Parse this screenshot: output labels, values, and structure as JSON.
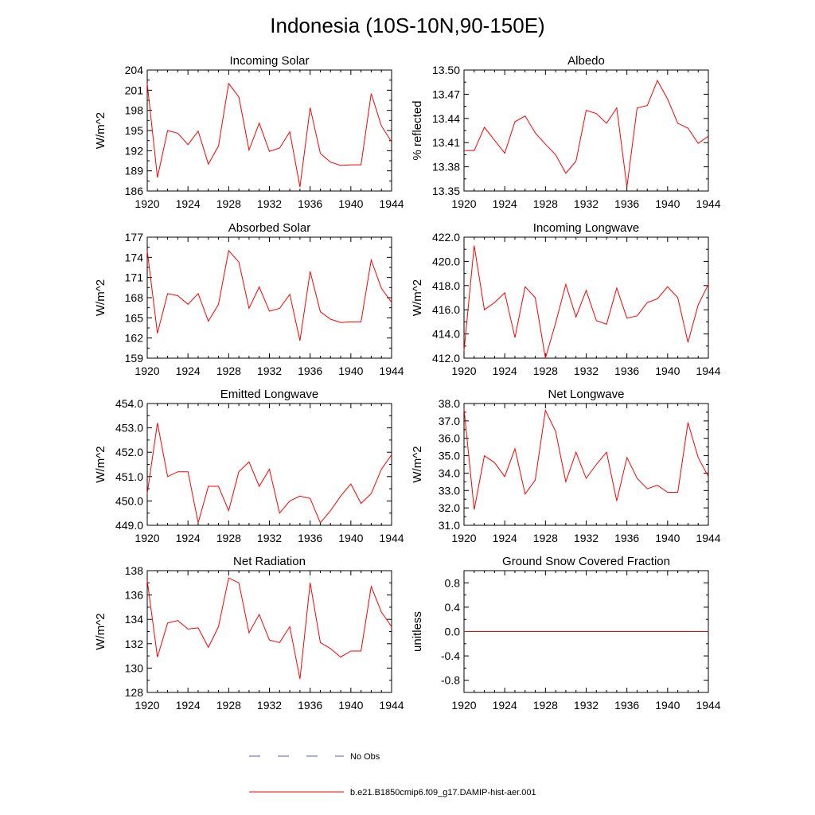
{
  "figure": {
    "title": "Indonesia (10S-10N,90-150E)"
  },
  "legend": {
    "obs_label": "No Obs",
    "model_label": "b.e21.B1850cmip6.f09_g17.DAMIP-hist-aer.001",
    "obs_color": "#5a5ad8",
    "model_color": "#ff0000"
  },
  "chart_data": [
    {
      "type": "line",
      "title": "Incoming Solar",
      "ylabel": "W/m^2",
      "xlim": [
        1920,
        1944
      ],
      "ylim": [
        186,
        204
      ],
      "yticks": [
        186,
        189,
        192,
        195,
        198,
        201,
        204
      ],
      "ytick_labels": [
        "186",
        "189",
        "192",
        "195",
        "198",
        "201",
        "204"
      ],
      "xticks": [
        1920,
        1924,
        1928,
        1932,
        1936,
        1940,
        1944
      ],
      "x": [
        1920,
        1921,
        1922,
        1923,
        1924,
        1925,
        1926,
        1927,
        1928,
        1929,
        1930,
        1931,
        1932,
        1933,
        1934,
        1935,
        1936,
        1937,
        1938,
        1939,
        1940,
        1941,
        1942,
        1943,
        1944
      ],
      "values": [
        202,
        188,
        195,
        194.6,
        192.9,
        194.9,
        190,
        192.7,
        202,
        200,
        192.1,
        196.1,
        191.9,
        192.4,
        194.8,
        186.6,
        198.4,
        191.6,
        190.3,
        189.8,
        189.9,
        189.9,
        200.5,
        195.7,
        193.3
      ]
    },
    {
      "type": "line",
      "title": "Albedo",
      "ylabel": "% reflected",
      "xlim": [
        1920,
        1944
      ],
      "ylim": [
        13.35,
        13.5
      ],
      "yticks": [
        13.35,
        13.38,
        13.41,
        13.44,
        13.47,
        13.5
      ],
      "ytick_labels": [
        "13.35",
        "13.38",
        "13.41",
        "13.44",
        "13.47",
        "13.50"
      ],
      "xticks": [
        1920,
        1924,
        1928,
        1932,
        1936,
        1940,
        1944
      ],
      "x": [
        1920,
        1921,
        1922,
        1923,
        1924,
        1925,
        1926,
        1927,
        1928,
        1929,
        1930,
        1931,
        1932,
        1933,
        1934,
        1935,
        1936,
        1937,
        1938,
        1939,
        1940,
        1941,
        1942,
        1943,
        1944
      ],
      "values": [
        13.4,
        13.4,
        13.429,
        13.413,
        13.397,
        13.436,
        13.443,
        13.422,
        13.408,
        13.395,
        13.372,
        13.387,
        13.45,
        13.446,
        13.434,
        13.453,
        13.355,
        13.453,
        13.456,
        13.487,
        13.464,
        13.434,
        13.428,
        13.409,
        13.418
      ]
    },
    {
      "type": "line",
      "title": "Absorbed Solar",
      "ylabel": "W/m^2",
      "xlim": [
        1920,
        1944
      ],
      "ylim": [
        159,
        177
      ],
      "yticks": [
        159,
        162,
        165,
        168,
        171,
        174,
        177
      ],
      "ytick_labels": [
        "159",
        "162",
        "165",
        "168",
        "171",
        "174",
        "177"
      ],
      "xticks": [
        1920,
        1924,
        1928,
        1932,
        1936,
        1940,
        1944
      ],
      "x": [
        1920,
        1921,
        1922,
        1923,
        1924,
        1925,
        1926,
        1927,
        1928,
        1929,
        1930,
        1931,
        1932,
        1933,
        1934,
        1935,
        1936,
        1937,
        1938,
        1939,
        1940,
        1941,
        1942,
        1943,
        1944
      ],
      "values": [
        175,
        162.7,
        168.6,
        168.3,
        167,
        168.6,
        164.5,
        167,
        175,
        173.3,
        166.4,
        169.6,
        166,
        166.4,
        168.5,
        161.6,
        171.9,
        165.9,
        164.8,
        164.3,
        164.4,
        164.4,
        173.6,
        169.4,
        167.3
      ]
    },
    {
      "type": "line",
      "title": "Incoming Longwave",
      "ylabel": "W/m^2",
      "xlim": [
        1920,
        1944
      ],
      "ylim": [
        412,
        422
      ],
      "yticks": [
        412,
        414,
        416,
        418,
        420,
        422
      ],
      "ytick_labels": [
        "412.0",
        "414.0",
        "416.0",
        "418.0",
        "420.0",
        "422.0"
      ],
      "xticks": [
        1920,
        1924,
        1928,
        1932,
        1936,
        1940,
        1944
      ],
      "x": [
        1920,
        1921,
        1922,
        1923,
        1924,
        1925,
        1926,
        1927,
        1928,
        1929,
        1930,
        1931,
        1932,
        1933,
        1934,
        1935,
        1936,
        1937,
        1938,
        1939,
        1940,
        1941,
        1942,
        1943,
        1944
      ],
      "values": [
        412.6,
        421.3,
        416,
        416.6,
        417.4,
        413.7,
        417.9,
        417,
        412,
        414.9,
        418.1,
        415.4,
        417.6,
        415.1,
        414.8,
        417.8,
        415.3,
        415.5,
        416.6,
        416.9,
        417.9,
        417,
        413.3,
        416.4,
        418.1
      ]
    },
    {
      "type": "line",
      "title": "Emitted Longwave",
      "ylabel": "W/m^2",
      "xlim": [
        1920,
        1944
      ],
      "ylim": [
        449,
        454
      ],
      "yticks": [
        449,
        450,
        451,
        452,
        453,
        454
      ],
      "ytick_labels": [
        "449.0",
        "450.0",
        "451.0",
        "452.0",
        "453.0",
        "454.0"
      ],
      "xticks": [
        1920,
        1924,
        1928,
        1932,
        1936,
        1940,
        1944
      ],
      "x": [
        1920,
        1921,
        1922,
        1923,
        1924,
        1925,
        1926,
        1927,
        1928,
        1929,
        1930,
        1931,
        1932,
        1933,
        1934,
        1935,
        1936,
        1937,
        1938,
        1939,
        1940,
        1941,
        1942,
        1943,
        1944
      ],
      "values": [
        450.3,
        453.2,
        451,
        451.2,
        451.2,
        449.1,
        450.6,
        450.6,
        449.6,
        451.2,
        451.6,
        450.6,
        451.3,
        449.5,
        450,
        450.2,
        450.1,
        449.1,
        449.6,
        450.2,
        450.7,
        449.9,
        450.3,
        451.3,
        451.9
      ]
    },
    {
      "type": "line",
      "title": "Net Longwave",
      "ylabel": "W/m^2",
      "xlim": [
        1920,
        1944
      ],
      "ylim": [
        31,
        38
      ],
      "yticks": [
        31,
        32,
        33,
        34,
        35,
        36,
        37,
        38
      ],
      "ytick_labels": [
        "31.0",
        "32.0",
        "33.0",
        "34.0",
        "35.0",
        "36.0",
        "37.0",
        "38.0"
      ],
      "xticks": [
        1920,
        1924,
        1928,
        1932,
        1936,
        1940,
        1944
      ],
      "x": [
        1920,
        1921,
        1922,
        1923,
        1924,
        1925,
        1926,
        1927,
        1928,
        1929,
        1930,
        1931,
        1932,
        1933,
        1934,
        1935,
        1936,
        1937,
        1938,
        1939,
        1940,
        1941,
        1942,
        1943,
        1944
      ],
      "values": [
        37.7,
        31.9,
        35,
        34.6,
        33.8,
        35.4,
        32.8,
        33.6,
        37.6,
        36.4,
        33.5,
        35.2,
        33.7,
        34.5,
        35.2,
        32.4,
        34.9,
        33.7,
        33.1,
        33.3,
        32.9,
        32.9,
        36.9,
        34.9,
        33.8
      ]
    },
    {
      "type": "line",
      "title": "Net Radiation",
      "ylabel": "W/m^2",
      "xlim": [
        1920,
        1944
      ],
      "ylim": [
        128,
        138
      ],
      "yticks": [
        128,
        130,
        132,
        134,
        136,
        138
      ],
      "ytick_labels": [
        "128",
        "130",
        "132",
        "134",
        "136",
        "138"
      ],
      "xticks": [
        1920,
        1924,
        1928,
        1932,
        1936,
        1940,
        1944
      ],
      "x": [
        1920,
        1921,
        1922,
        1923,
        1924,
        1925,
        1926,
        1927,
        1928,
        1929,
        1930,
        1931,
        1932,
        1933,
        1934,
        1935,
        1936,
        1937,
        1938,
        1939,
        1940,
        1941,
        1942,
        1943,
        1944
      ],
      "values": [
        137.2,
        130.9,
        133.7,
        133.9,
        133.2,
        133.3,
        131.7,
        133.4,
        137.4,
        137,
        132.9,
        134.4,
        132.3,
        132.1,
        133.4,
        129.1,
        137,
        132.1,
        131.6,
        130.9,
        131.4,
        131.4,
        136.7,
        134.6,
        133.4
      ]
    },
    {
      "type": "line",
      "title": "Ground Snow Covered Fraction",
      "ylabel": "unitless",
      "xlim": [
        1920,
        1944
      ],
      "ylim": [
        -1,
        1
      ],
      "yticks": [
        -0.8,
        -0.4,
        0,
        0.4,
        0.8
      ],
      "ytick_labels": [
        "-0.8",
        "-0.4",
        "0.0",
        "0.4",
        "0.8"
      ],
      "xticks": [
        1920,
        1924,
        1928,
        1932,
        1936,
        1940,
        1944
      ],
      "x": [
        1920,
        1944
      ],
      "values": [
        0,
        0
      ]
    }
  ]
}
